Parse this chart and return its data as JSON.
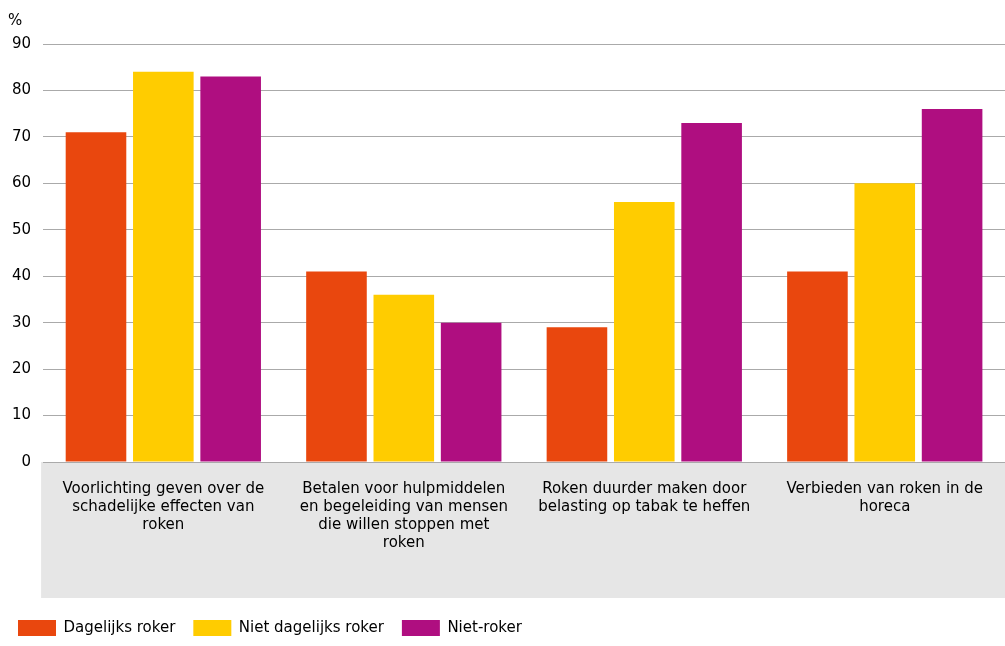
{
  "chart_data": {
    "type": "bar",
    "ylabel": "%",
    "categories": [
      "Voorlichting geven over de schadelijke effecten van roken",
      "Betalen voor hulpmiddelen en begeleiding van mensen die willen stoppen met roken",
      "Roken duurder maken door belasting op tabak te heffen",
      "Verbieden van roken in de horeca"
    ],
    "series": [
      {
        "name": "Dagelijks roker",
        "color": "#e9470e",
        "values": [
          71,
          41,
          29,
          41
        ]
      },
      {
        "name": "Niet dagelijks roker",
        "color": "#ffcc00",
        "values": [
          84,
          36,
          56,
          60
        ]
      },
      {
        "name": "Niet-roker",
        "color": "#af0e80",
        "values": [
          83,
          30,
          73,
          76
        ]
      }
    ],
    "ylim": [
      0,
      90
    ],
    "yticks": [
      0,
      10,
      20,
      30,
      40,
      50,
      60,
      70,
      80,
      90
    ],
    "grid": "y",
    "legend": "bottom left"
  }
}
